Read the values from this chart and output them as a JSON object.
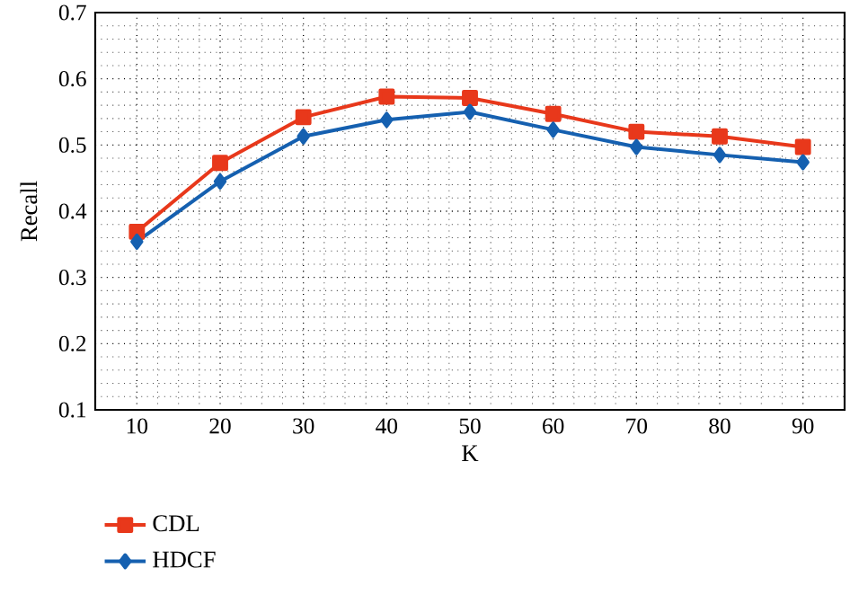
{
  "chart_data": {
    "type": "line",
    "xlabel": "K",
    "ylabel": "Recall",
    "categories": [
      "10",
      "20",
      "30",
      "40",
      "50",
      "60",
      "70",
      "80",
      "90"
    ],
    "series": [
      {
        "name": "CDL",
        "color": "#e8381b",
        "marker": "square",
        "values": [
          0.369,
          0.473,
          0.542,
          0.573,
          0.571,
          0.547,
          0.52,
          0.513,
          0.497
        ]
      },
      {
        "name": "HDCF",
        "color": "#1560b0",
        "marker": "diamond",
        "values": [
          0.354,
          0.445,
          0.513,
          0.538,
          0.55,
          0.523,
          0.497,
          0.485,
          0.474
        ]
      }
    ],
    "ylim": [
      0.1,
      0.7
    ],
    "yticks": [
      0.1,
      0.2,
      0.3,
      0.4,
      0.5,
      0.6,
      0.7
    ],
    "grid": true,
    "legend": "bottom left",
    "line_style": "solid"
  }
}
